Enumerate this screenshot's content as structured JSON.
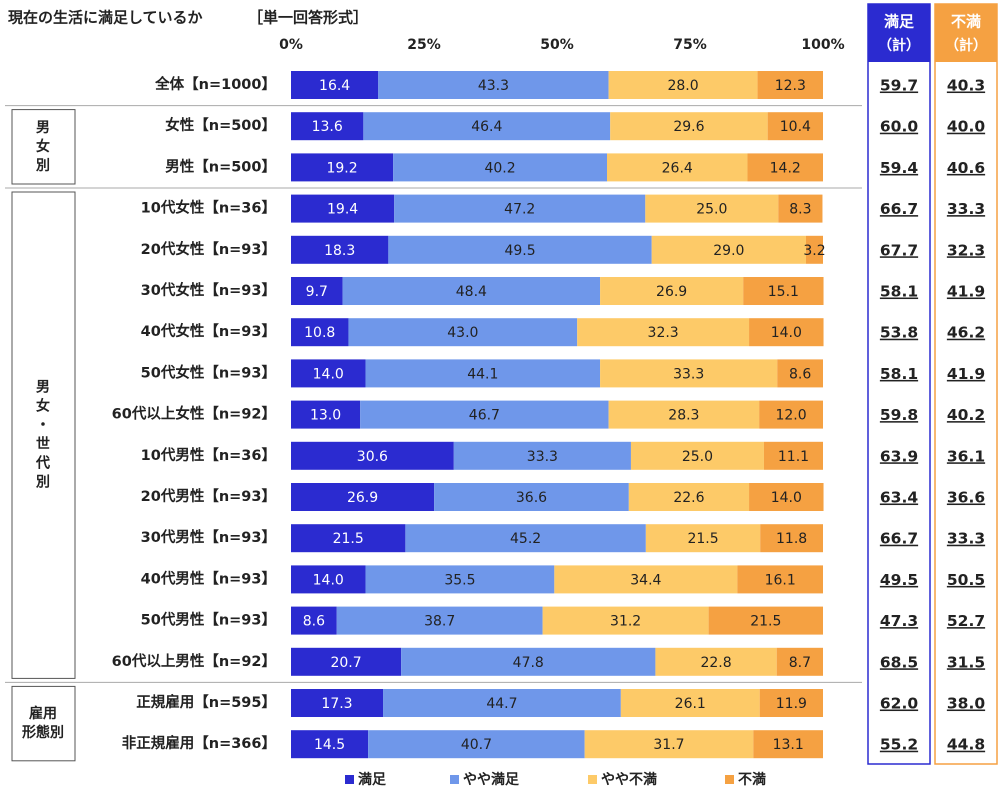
{
  "chart_data": {
    "type": "bar",
    "orientation": "horizontal",
    "stacked": true,
    "title": "現在の生活に満足しているか",
    "subtitle": "［単一回答形式］",
    "xlim": [
      0,
      100
    ],
    "xticks": [
      {
        "value": 0,
        "label": "0%"
      },
      {
        "value": 25,
        "label": "25%"
      },
      {
        "value": 50,
        "label": "50%"
      },
      {
        "value": 75,
        "label": "75%"
      },
      {
        "value": 100,
        "label": "100%"
      }
    ],
    "groups": [
      {
        "label": null,
        "categories": [
          "全体【n=1000】"
        ]
      },
      {
        "label": "男女別",
        "categories": [
          "女性【n=500】",
          "男性【n=500】"
        ]
      },
      {
        "label": "男女・世代別",
        "categories": [
          "10代女性【n=36】",
          "20代女性【n=93】",
          "30代女性【n=93】",
          "40代女性【n=93】",
          "50代女性【n=93】",
          "60代以上女性【n=92】",
          "10代男性【n=36】",
          "20代男性【n=93】",
          "30代男性【n=93】",
          "40代男性【n=93】",
          "50代男性【n=93】",
          "60代以上男性【n=92】"
        ]
      },
      {
        "label": "雇用形態別",
        "categories": [
          "正規雇用【n=595】",
          "非正規雇用【n=366】"
        ]
      }
    ],
    "series": [
      {
        "name": "満足",
        "color": "#2b2bd0",
        "values": [
          16.4,
          13.6,
          19.2,
          19.4,
          18.3,
          9.7,
          10.8,
          14.0,
          13.0,
          30.6,
          26.9,
          21.5,
          14.0,
          8.6,
          20.7,
          17.3,
          14.5
        ],
        "value_labels": [
          "16.4",
          "13.6",
          "19.2",
          "19.4",
          "18.3",
          "9.7",
          "10.8",
          "14.0",
          "13.0",
          "30.6",
          "26.9",
          "21.5",
          "14.0",
          "8.6",
          "20.7",
          "17.3",
          "14.5"
        ]
      },
      {
        "name": "やや満足",
        "color": "#6f97ea",
        "values": [
          43.3,
          46.4,
          40.2,
          47.2,
          49.5,
          48.4,
          43.0,
          44.1,
          46.7,
          33.3,
          36.6,
          45.2,
          35.5,
          38.7,
          47.8,
          44.7,
          40.7
        ],
        "value_labels": [
          "43.3",
          "46.4",
          "40.2",
          "47.2",
          "49.5",
          "48.4",
          "43.0",
          "44.1",
          "46.7",
          "33.3",
          "36.6",
          "45.2",
          "35.5",
          "38.7",
          "47.8",
          "44.7",
          "40.7"
        ]
      },
      {
        "name": "やや不満",
        "color": "#fdca68",
        "values": [
          28.0,
          29.6,
          26.4,
          25.0,
          29.0,
          26.9,
          32.3,
          33.3,
          28.3,
          25.0,
          22.6,
          21.5,
          34.4,
          31.2,
          22.8,
          26.1,
          31.7
        ],
        "value_labels": [
          "28.0",
          "29.6",
          "26.4",
          "25.0",
          "29.0",
          "26.9",
          "32.3",
          "33.3",
          "28.3",
          "25.0",
          "22.6",
          "21.5",
          "34.4",
          "31.2",
          "22.8",
          "26.1",
          "31.7"
        ]
      },
      {
        "name": "不満",
        "color": "#f5a142",
        "values": [
          12.3,
          10.4,
          14.2,
          8.3,
          3.2,
          15.1,
          14.0,
          8.6,
          12.0,
          11.1,
          14.0,
          11.8,
          16.1,
          21.5,
          8.7,
          11.9,
          13.1
        ],
        "value_labels": [
          "12.3",
          "10.4",
          "14.2",
          "8.3",
          "3.2",
          "15.1",
          "14.0",
          "8.6",
          "12.0",
          "11.1",
          "14.0",
          "11.8",
          "16.1",
          "21.5",
          "8.7",
          "11.9",
          "13.1"
        ]
      }
    ],
    "summary": [
      {
        "name": "満足",
        "unit": "（計）",
        "color": "#2b2bd0",
        "values": [
          59.7,
          60.0,
          59.4,
          66.7,
          67.7,
          58.1,
          53.8,
          58.1,
          59.8,
          63.9,
          63.4,
          66.7,
          49.5,
          47.3,
          68.5,
          62.0,
          55.2
        ],
        "value_labels": [
          "59.7",
          "60.0",
          "59.4",
          "66.7",
          "67.7",
          "58.1",
          "53.8",
          "58.1",
          "59.8",
          "63.9",
          "63.4",
          "66.7",
          "49.5",
          "47.3",
          "68.5",
          "62.0",
          "55.2"
        ]
      },
      {
        "name": "不満",
        "unit": "（計）",
        "color": "#f5a142",
        "values": [
          40.3,
          40.0,
          40.6,
          33.3,
          32.3,
          41.9,
          46.2,
          41.9,
          40.2,
          36.1,
          36.6,
          33.3,
          50.5,
          52.7,
          31.5,
          38.0,
          44.8
        ],
        "value_labels": [
          "40.3",
          "40.0",
          "40.6",
          "33.3",
          "32.3",
          "41.9",
          "46.2",
          "41.9",
          "40.2",
          "36.1",
          "36.6",
          "33.3",
          "50.5",
          "52.7",
          "31.5",
          "38.0",
          "44.8"
        ]
      }
    ]
  }
}
